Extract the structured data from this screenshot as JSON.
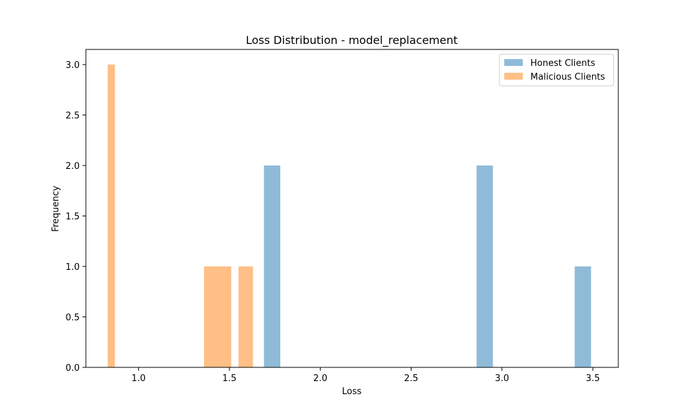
{
  "chart_data": {
    "type": "bar",
    "title": "Loss Distribution - model_replacement",
    "xlabel": "Loss",
    "ylabel": "Frequency",
    "xlim": [
      0.71,
      3.64
    ],
    "ylim": [
      0,
      3.15
    ],
    "xticks": [
      "1.0",
      "1.5",
      "2.0",
      "2.5",
      "3.0",
      "3.5"
    ],
    "yticks": [
      "0.0",
      "0.5",
      "1.0",
      "1.5",
      "2.0",
      "2.5",
      "3.0"
    ],
    "grid": false,
    "legend_position": "top-right",
    "series": [
      {
        "name": "Honest Clients",
        "color": "#1f77b4",
        "opacity": 0.5,
        "bars": [
          {
            "x0": 1.69,
            "x1": 1.78,
            "count": 2
          },
          {
            "x0": 2.86,
            "x1": 2.95,
            "count": 2
          },
          {
            "x0": 3.4,
            "x1": 3.49,
            "count": 1
          }
        ]
      },
      {
        "name": "Malicious Clients",
        "color": "#ff7f0e",
        "opacity": 0.5,
        "bars": [
          {
            "x0": 0.83,
            "x1": 0.87,
            "count": 3
          },
          {
            "x0": 1.36,
            "x1": 1.51,
            "count": 1
          },
          {
            "x0": 1.55,
            "x1": 1.63,
            "count": 1
          }
        ]
      }
    ]
  }
}
